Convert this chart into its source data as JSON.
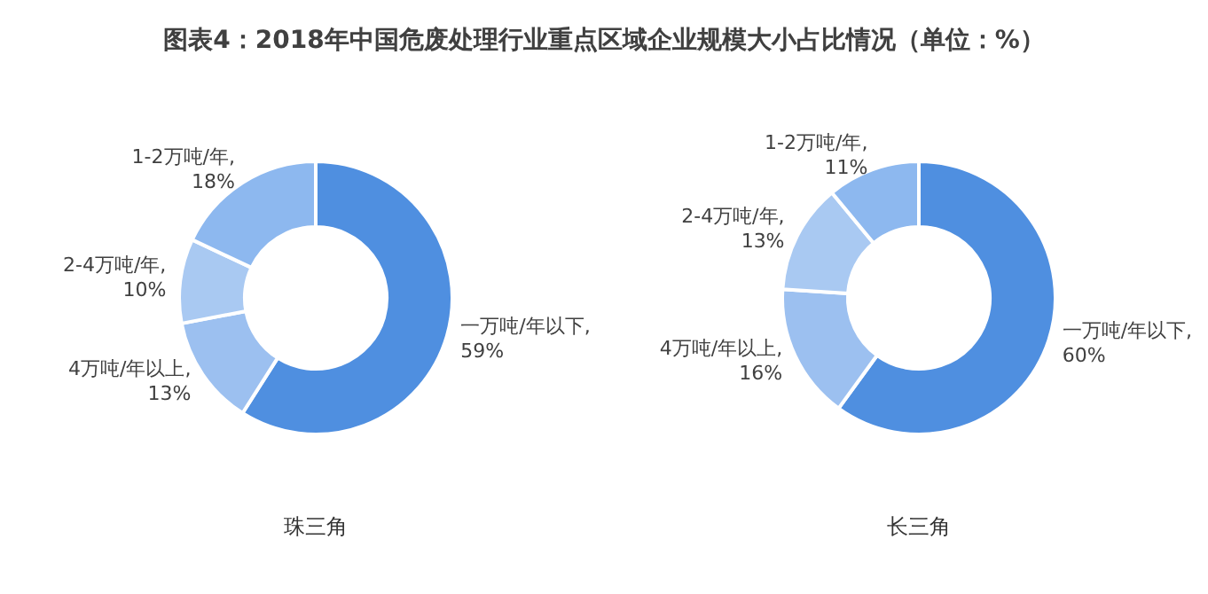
{
  "chart_data": [
    {
      "type": "donut",
      "title": "图表4：2018年中国危废处理行业重点区域企业规模大小占比情况（单位：%）",
      "xlabel": "珠三角",
      "categories": [
        "一万吨/年以下",
        "4万吨/年以上",
        "2-4万吨/年",
        "1-2万吨/年"
      ],
      "values": [
        59,
        13,
        10,
        18
      ],
      "value_labels": [
        ", 59%",
        ", 13%",
        ", 10%",
        ", 18%"
      ],
      "colors": [
        "#4f8fe0",
        "#9cc0f0",
        "#a9c9f2",
        "#8db8ef"
      ],
      "legend": false
    },
    {
      "type": "donut",
      "xlabel": "长三角",
      "categories": [
        "一万吨/年以下",
        "4万吨/年以上",
        "2-4万吨/年",
        "1-2万吨/年"
      ],
      "values": [
        60,
        16,
        13,
        11
      ],
      "value_labels": [
        ", 60%",
        ", 16%",
        ", 13%",
        ", 11%"
      ],
      "colors": [
        "#4f8fe0",
        "#9cc0f0",
        "#a9c9f2",
        "#8db8ef"
      ],
      "legend": false
    }
  ]
}
